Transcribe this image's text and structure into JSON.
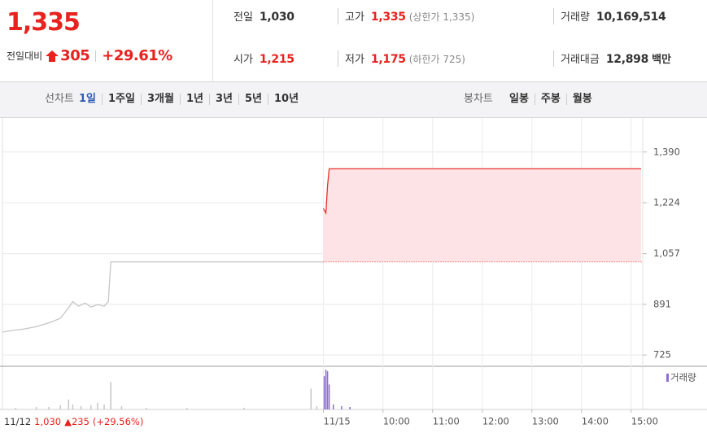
{
  "quote": {
    "price": "1,335",
    "change_label": "전일대비",
    "change": "305",
    "rate": "+29.61%",
    "stats": [
      {
        "label": "전일",
        "value": "1,030"
      },
      {
        "label": "고가",
        "value": "1,335",
        "note": "(상한가 1,335)"
      },
      {
        "label": "거래량",
        "value": "10,169,514"
      },
      {
        "label": "시가",
        "value": "1,215"
      },
      {
        "label": "저가",
        "value": "1,175",
        "note": "(하한가 725)"
      },
      {
        "label": "거래대금",
        "value": "12,898",
        "unit": "백만"
      }
    ]
  },
  "tabs": {
    "line_label": "선차트",
    "line": [
      "1일",
      "1주일",
      "3개월",
      "1년",
      "3년",
      "5년",
      "10년"
    ],
    "line_active": 0,
    "candle_label": "봉차트",
    "candle": [
      "일봉",
      "주봉",
      "월봉"
    ]
  },
  "chart_data": {
    "type": "line",
    "day_label": {
      "date": "11/12",
      "close": "1,030",
      "change": "▲235",
      "rate": "(+29.56%)"
    },
    "xlim": [
      -400,
      374
    ],
    "xticks": [
      {
        "value": -12,
        "label": "11/15"
      },
      {
        "value": 60,
        "label": "10:00"
      },
      {
        "value": 120,
        "label": "11:00"
      },
      {
        "value": 180,
        "label": "12:00"
      },
      {
        "value": 240,
        "label": "13:00"
      },
      {
        "value": 300,
        "label": "14:00"
      },
      {
        "value": 360,
        "label": "15:00"
      }
    ],
    "ylim": [
      688,
      1448
    ],
    "yticks": [
      {
        "value": 1390,
        "label": "1,390"
      },
      {
        "value": 1224,
        "label": "1,224"
      },
      {
        "value": 1057,
        "label": "1,057"
      },
      891,
      725
    ],
    "grid": true,
    "reference": 1030,
    "series": [
      {
        "color": "#c6c6c6",
        "x": [
          -400,
          -389,
          -374,
          -359,
          -344,
          -330,
          -320,
          -315,
          -308,
          -300,
          -293,
          -285,
          -277,
          -272,
          -269,
          -12
        ],
        "values": [
          800,
          805,
          810,
          818,
          830,
          845,
          880,
          900,
          885,
          895,
          882,
          890,
          885,
          900,
          1030,
          1030
        ]
      },
      {
        "color": "#e8302a",
        "fill": "#fde3e5",
        "x": [
          -12,
          -9,
          -7,
          -5,
          372
        ],
        "values": [
          1205,
          1190,
          1280,
          1335,
          1335
        ]
      }
    ],
    "volume": {
      "ylim": [
        0,
        100
      ],
      "legend": "거래량",
      "series": [
        {
          "color": "#c6c6c6",
          "x": [
            -384,
            -359,
            -344,
            -330,
            -320,
            -315,
            -305,
            -293,
            -285,
            -277,
            -269,
            -256,
            -226,
            -177,
            -108,
            -27,
            -20
          ],
          "values": [
            4,
            6,
            6,
            10,
            24,
            12,
            8,
            10,
            16,
            12,
            66,
            8,
            4,
            4,
            4,
            50,
            8
          ]
        },
        {
          "name": "거래량",
          "color": "#8c6fd0",
          "x": [
            -11,
            -9,
            -7,
            -5,
            0,
            10,
            20
          ],
          "values": [
            80,
            96,
            92,
            60,
            12,
            8,
            6
          ]
        }
      ]
    }
  }
}
